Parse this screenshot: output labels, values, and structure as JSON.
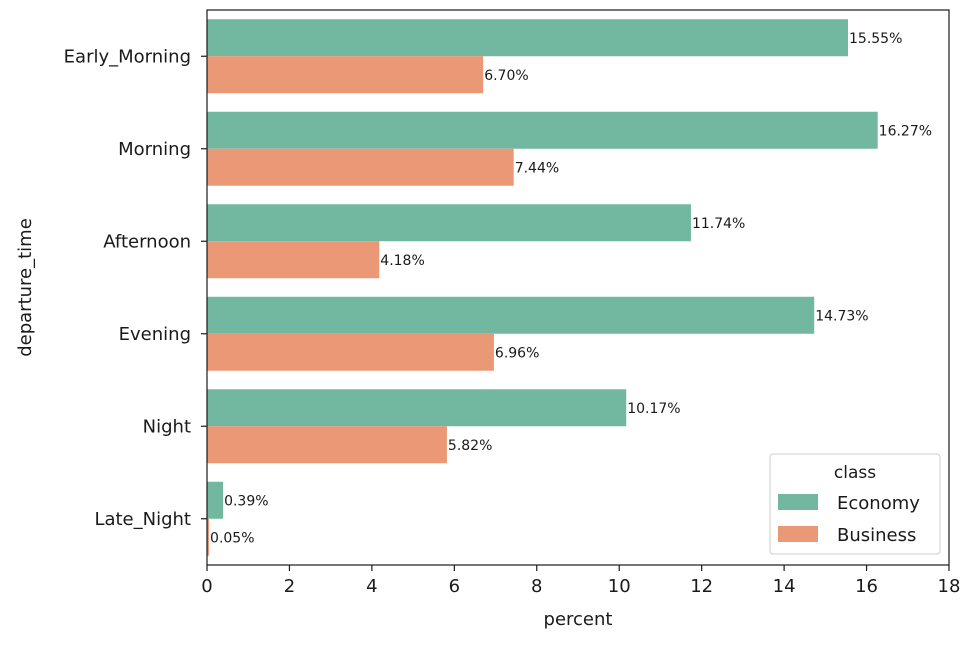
{
  "chart_data": {
    "type": "bar",
    "orientation": "horizontal",
    "categories": [
      "Early_Morning",
      "Morning",
      "Afternoon",
      "Evening",
      "Night",
      "Late_Night"
    ],
    "series": [
      {
        "name": "Economy",
        "color": "#72b7a0",
        "values": [
          15.55,
          16.27,
          11.74,
          14.73,
          10.17,
          0.39
        ],
        "labels": [
          "15.55%",
          "16.27%",
          "11.74%",
          "14.73%",
          "10.17%",
          "0.39%"
        ]
      },
      {
        "name": "Business",
        "color": "#ea9875",
        "values": [
          6.7,
          7.44,
          4.18,
          6.96,
          5.82,
          0.05
        ],
        "labels": [
          "6.70%",
          "7.44%",
          "4.18%",
          "6.96%",
          "5.82%",
          "0.05%"
        ]
      }
    ],
    "xlabel": "percent",
    "ylabel": "departure_time",
    "xlim": [
      0,
      18
    ],
    "xticks": [
      "0",
      "2",
      "4",
      "6",
      "8",
      "10",
      "12",
      "14",
      "16",
      "18"
    ],
    "legend": {
      "title": "class",
      "placement": "lower-right"
    },
    "grid": false
  }
}
